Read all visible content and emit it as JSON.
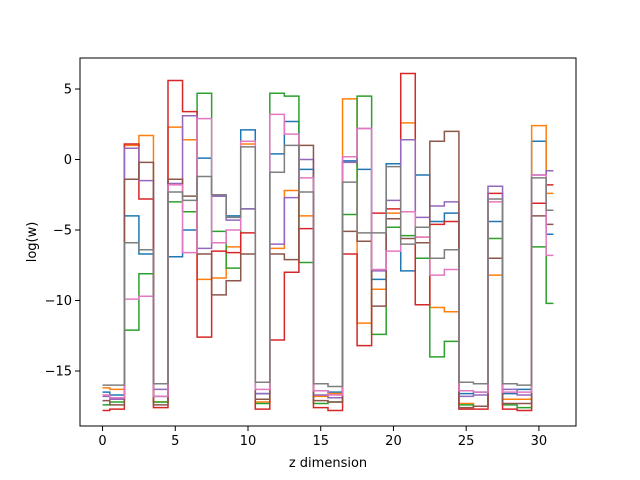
{
  "chart_data": {
    "type": "line",
    "step": "mid",
    "title": "",
    "xlabel": "z dimension",
    "ylabel": "log(w)",
    "xlim": [
      -1.55,
      32.55
    ],
    "ylim": [
      -18.9,
      7.2
    ],
    "xticks": [
      0,
      5,
      10,
      15,
      20,
      25,
      30
    ],
    "xtick_labels": [
      "0",
      "5",
      "10",
      "15",
      "20",
      "25",
      "30"
    ],
    "yticks": [
      -15,
      -10,
      -5,
      0,
      5
    ],
    "ytick_labels": [
      "−15",
      "−10",
      "−5",
      "0",
      "5"
    ],
    "grid": false,
    "legend": "none",
    "x": [
      0,
      1,
      2,
      3,
      4,
      5,
      6,
      7,
      8,
      9,
      10,
      11,
      12,
      13,
      14,
      15,
      16,
      17,
      18,
      19,
      20,
      21,
      22,
      23,
      24,
      25,
      26,
      27,
      28,
      29,
      30,
      31
    ],
    "series": [
      {
        "color": "#1f77b4",
        "values": [
          -16.5,
          -16.7,
          -4.0,
          -6.7,
          -16.8,
          -6.9,
          -5.0,
          0.1,
          -2.6,
          -4.0,
          2.1,
          -16.6,
          0.4,
          2.7,
          -0.7,
          -16.4,
          -16.5,
          -0.1,
          -0.7,
          -8.5,
          -0.3,
          -7.9,
          -1.1,
          -4.4,
          -3.8,
          -16.6,
          -16.5,
          -4.4,
          -16.6,
          -16.3,
          1.3,
          -5.3
        ]
      },
      {
        "color": "#ff7f0e",
        "values": [
          -16.2,
          -16.3,
          1.0,
          1.7,
          -17.2,
          2.3,
          1.4,
          -8.5,
          -8.4,
          -6.2,
          1.1,
          -17.2,
          -6.3,
          -2.2,
          -4.0,
          -16.8,
          -16.6,
          4.3,
          -11.6,
          -9.2,
          -3.8,
          2.6,
          -5.5,
          -10.5,
          -10.8,
          -17.3,
          -17.5,
          -8.2,
          -17.0,
          -17.0,
          2.4,
          -2.4
        ]
      },
      {
        "color": "#2ca02c",
        "values": [
          -17.4,
          -17.2,
          -12.1,
          -8.1,
          -17.2,
          -3.0,
          -3.7,
          4.7,
          -5.1,
          -7.7,
          -3.5,
          -17.3,
          4.7,
          4.5,
          -7.3,
          -17.3,
          -17.2,
          -3.9,
          4.5,
          -12.4,
          -4.8,
          -5.4,
          -7.0,
          -14.0,
          -12.9,
          -17.4,
          -17.5,
          -5.6,
          -17.4,
          -17.6,
          -6.2,
          -10.2
        ]
      },
      {
        "color": "#d62728",
        "values": [
          -17.8,
          -17.7,
          1.1,
          -2.8,
          -17.6,
          5.6,
          3.4,
          -12.6,
          -6.5,
          -6.6,
          -5.2,
          -17.7,
          -12.8,
          -8.0,
          -4.9,
          -17.6,
          -17.8,
          -6.7,
          -13.2,
          -3.8,
          -3.5,
          6.1,
          -10.3,
          -4.6,
          -4.4,
          -17.7,
          -17.7,
          -2.4,
          -17.7,
          -17.8,
          -3.1,
          -1.8
        ]
      },
      {
        "color": "#9467bd",
        "values": [
          -16.8,
          -17.0,
          0.8,
          -1.5,
          -16.3,
          -1.7,
          3.1,
          -6.3,
          -2.6,
          -4.3,
          -3.5,
          -16.6,
          -6.0,
          -2.7,
          0.0,
          -16.7,
          -16.9,
          -0.2,
          2.2,
          -7.9,
          -2.9,
          1.4,
          -4.1,
          -3.3,
          -3.0,
          -16.8,
          -16.7,
          -1.9,
          -16.3,
          -16.7,
          -1.1,
          -0.8
        ]
      },
      {
        "color": "#8c564b",
        "values": [
          -17.1,
          -17.4,
          -1.4,
          -0.2,
          -17.4,
          -1.4,
          -2.6,
          -6.7,
          -9.6,
          -8.6,
          -6.7,
          -17.0,
          -6.7,
          -7.1,
          1.0,
          -17.1,
          -17.2,
          -5.1,
          -5.8,
          -10.4,
          -4.2,
          -5.6,
          -5.9,
          1.3,
          2.0,
          -17.6,
          -17.5,
          -7.0,
          -17.3,
          -17.3,
          -4.0,
          -4.6
        ]
      },
      {
        "color": "#e377c2",
        "values": [
          -16.7,
          -16.9,
          -9.9,
          -9.7,
          -16.8,
          -1.8,
          -6.6,
          2.9,
          -5.9,
          -5.0,
          1.3,
          -16.3,
          3.2,
          1.8,
          -1.3,
          -16.4,
          -16.7,
          0.2,
          2.2,
          -7.8,
          -6.5,
          -3.7,
          -5.5,
          -8.2,
          -7.8,
          -16.4,
          -16.5,
          -3.0,
          -16.5,
          -16.5,
          -1.1,
          -6.8
        ]
      },
      {
        "color": "#7f7f7f",
        "values": [
          -16.0,
          -16.0,
          -5.9,
          -6.4,
          -15.9,
          -2.3,
          -2.9,
          -1.2,
          -2.5,
          -4.1,
          0.9,
          -15.8,
          -0.9,
          1.0,
          -2.3,
          -15.9,
          -16.1,
          -1.6,
          -5.2,
          -5.2,
          -0.5,
          -6.0,
          -4.8,
          -7.0,
          -6.4,
          -15.8,
          -15.9,
          -2.8,
          -15.9,
          -16.0,
          -1.3,
          -3.6
        ]
      }
    ]
  }
}
